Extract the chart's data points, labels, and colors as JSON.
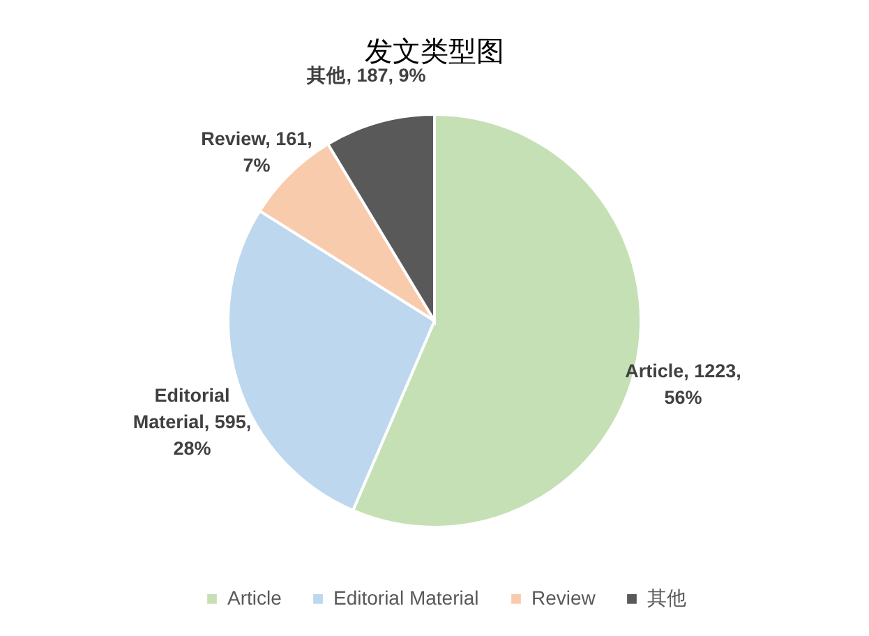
{
  "chart_data": {
    "type": "pie",
    "title": "发文类型图",
    "categories": [
      "Article",
      "Editorial Material",
      "Review",
      "其他"
    ],
    "values": [
      1223,
      595,
      161,
      187
    ],
    "colors": [
      "#c5e0b4",
      "#bdd7ee",
      "#f8cbad",
      "#595959"
    ],
    "value_labels": [
      "Article, 1223, 56%",
      "Editorial Material, 595, 28%",
      "Review, 161, 7%",
      "其他, 187, 9%"
    ],
    "legend": "bottom"
  }
}
